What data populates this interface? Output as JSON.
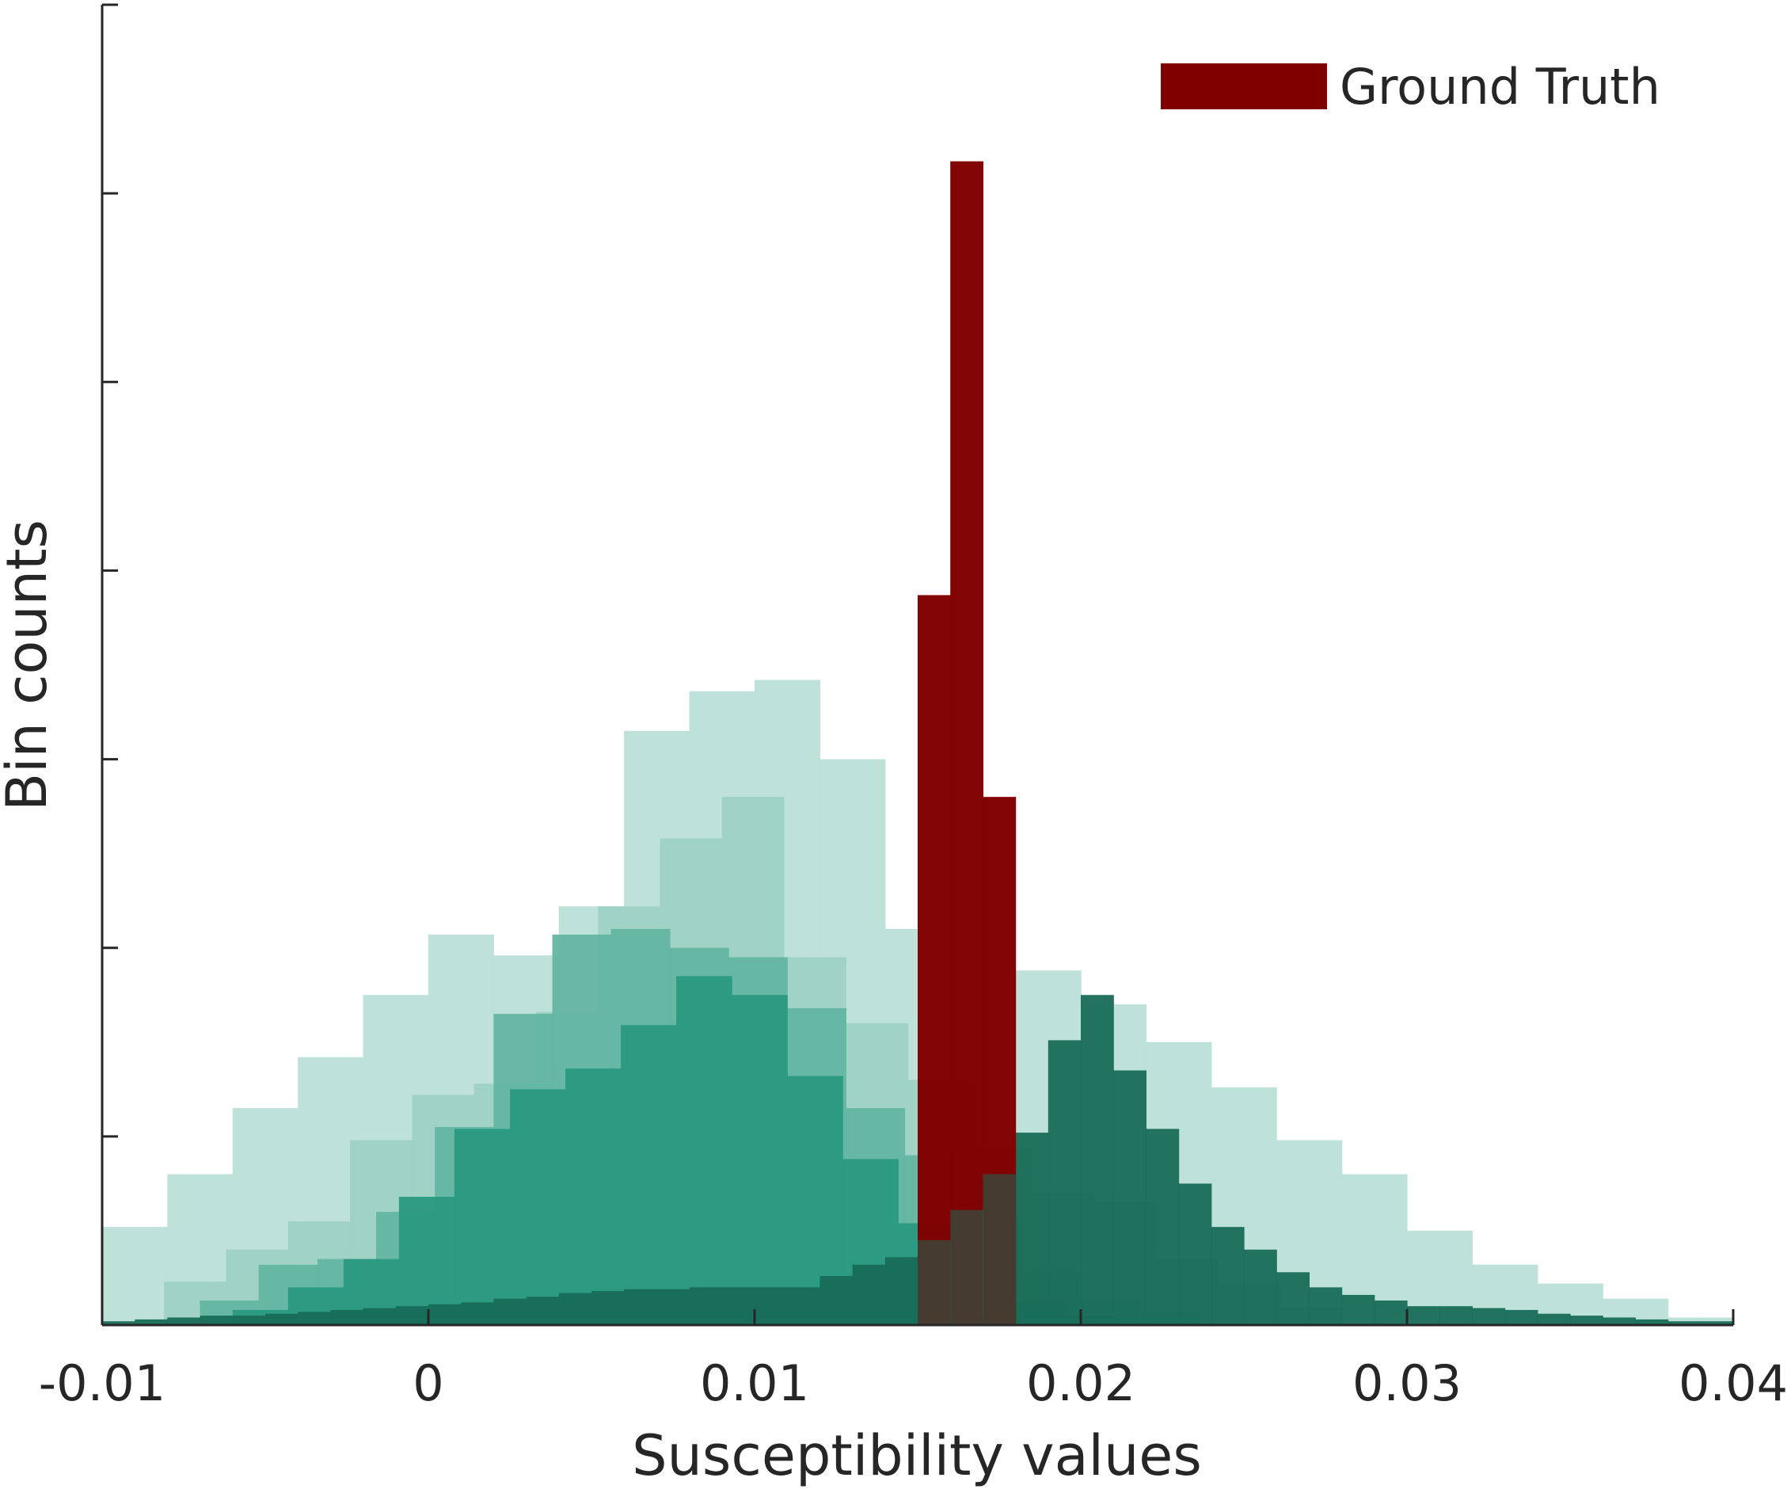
{
  "chart_data": {
    "type": "histogram",
    "xlabel": "Susceptibility values",
    "ylabel": "Bin counts",
    "xlim": [
      -0.01,
      0.04
    ],
    "ylim": [
      0,
      7
    ],
    "xticks": [
      {
        "value": -0.01,
        "label": "-0.01"
      },
      {
        "value": 0,
        "label": "0"
      },
      {
        "value": 0.01,
        "label": "0.01"
      },
      {
        "value": 0.02,
        "label": "0.02"
      },
      {
        "value": 0.03,
        "label": "0.03"
      },
      {
        "value": 0.04,
        "label": "0.04"
      }
    ],
    "yticks": [
      0,
      1,
      2,
      3,
      4,
      5,
      6,
      7
    ],
    "ytick_labels_shown": false,
    "grid": false,
    "legend": {
      "position": "top-right",
      "entries": [
        {
          "label": "Ground Truth",
          "color": "#800000"
        }
      ]
    },
    "layers": [
      {
        "color": "#dbede9",
        "bin_width": 0.002,
        "start": -0.01,
        "values": [
          0.52,
          0.8,
          1.15,
          1.42,
          1.75,
          2.07,
          1.96,
          2.22,
          3.15,
          3.36,
          3.42,
          3.0,
          2.1,
          1.85,
          1.88,
          1.7,
          1.5,
          1.26,
          0.98,
          0.8,
          0.5,
          0.32,
          0.22,
          0.14,
          0.04
        ]
      },
      {
        "color": "#bce0d8",
        "bin_width": 0.002,
        "start": -0.01,
        "values": [
          0.52,
          0.8,
          1.15,
          1.42,
          1.75,
          2.07,
          1.96,
          2.22,
          3.15,
          3.36,
          3.42,
          3.0,
          2.1,
          1.85,
          1.88,
          1.7,
          1.5,
          1.26,
          0.98,
          0.8,
          0.5,
          0.32,
          0.22,
          0.14,
          0.04
        ]
      },
      {
        "color": "#9ed1c5",
        "bin_width": 0.0019,
        "start": -0.01,
        "values": [
          0.0,
          0.23,
          0.4,
          0.55,
          0.98,
          1.22,
          1.28,
          1.66,
          2.22,
          2.58,
          2.8,
          1.95,
          1.6,
          1.3,
          0.94,
          0.7,
          0.65,
          0.35,
          0.22,
          0.1,
          0.0
        ]
      },
      {
        "color": "#63b5a2",
        "bin_width": 0.0018,
        "start": -0.007,
        "values": [
          0.13,
          0.32,
          0.35,
          0.6,
          1.05,
          1.65,
          2.07,
          2.1,
          2.0,
          1.95,
          1.68,
          1.15,
          0.9,
          0.58,
          0.28,
          0.14,
          0.07
        ]
      },
      {
        "color": "#2a9980",
        "bin_width": 0.0017,
        "start": -0.006,
        "values": [
          0.08,
          0.2,
          0.35,
          0.68,
          1.04,
          1.25,
          1.36,
          1.59,
          1.85,
          1.75,
          1.32,
          0.88,
          0.54,
          0.28,
          0.12,
          0.05
        ]
      },
      {
        "color": "#186b57",
        "bin_width": 0.001,
        "start": -0.01,
        "values": [
          0.02,
          0.03,
          0.04,
          0.05,
          0.05,
          0.06,
          0.07,
          0.08,
          0.09,
          0.1,
          0.11,
          0.12,
          0.14,
          0.15,
          0.17,
          0.18,
          0.19,
          0.19,
          0.2,
          0.2,
          0.2,
          0.2,
          0.26,
          0.32,
          0.36,
          0.45,
          0.61,
          0.8,
          1.02,
          1.51,
          1.75,
          1.35,
          1.04,
          0.75,
          0.52,
          0.4,
          0.28,
          0.2,
          0.16,
          0.13,
          0.1,
          0.1,
          0.09,
          0.08,
          0.06,
          0.05,
          0.04,
          0.03,
          0.02,
          0.02
        ]
      },
      {
        "color": "#800000",
        "name": "Ground Truth",
        "bin_width": 0.001,
        "start": 0.015,
        "values": [
          3.87,
          6.17,
          2.8
        ]
      }
    ]
  }
}
